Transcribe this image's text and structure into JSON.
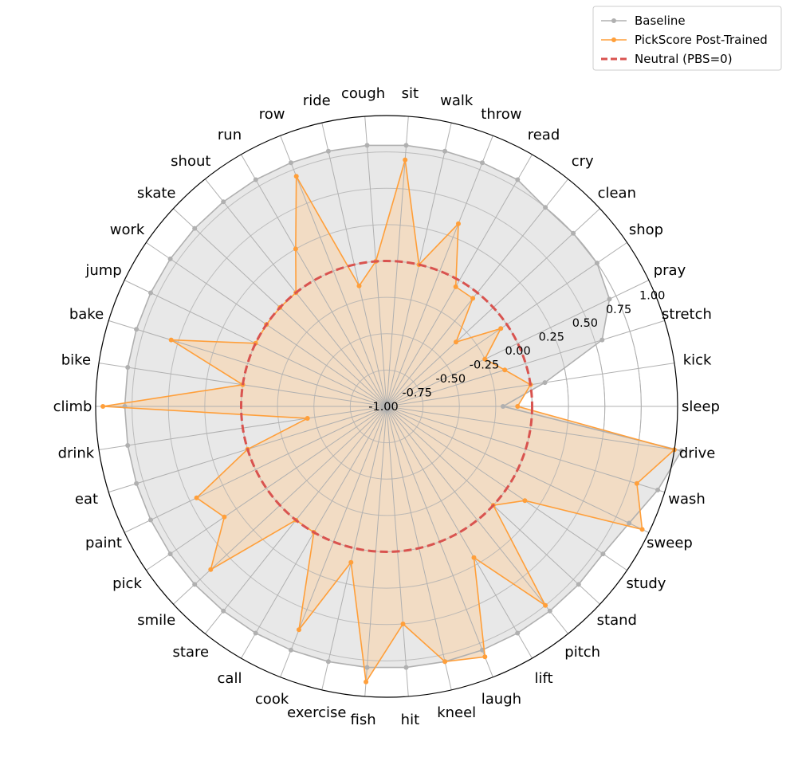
{
  "chart_data": {
    "type": "radar",
    "categories": [
      "sleep",
      "kick",
      "stretch",
      "pray",
      "shop",
      "clean",
      "cry",
      "read",
      "throw",
      "walk",
      "sit",
      "cough",
      "ride",
      "row",
      "run",
      "shout",
      "skate",
      "work",
      "jump",
      "bake",
      "bike",
      "climb",
      "drink",
      "eat",
      "paint",
      "pick",
      "smile",
      "stare",
      "call",
      "cook",
      "exercise",
      "fish",
      "hit",
      "kneel",
      "laugh",
      "lift",
      "pitch",
      "stand",
      "study",
      "sweep",
      "wash",
      "drive"
    ],
    "series": [
      {
        "name": "Baseline",
        "color": "#b0b0b0",
        "fill": "#e8e8e8",
        "values": [
          -0.2,
          0.1,
          0.55,
          0.7,
          0.75,
          0.75,
          0.75,
          0.8,
          0.8,
          0.8,
          0.8,
          0.8,
          0.8,
          0.8,
          0.8,
          0.8,
          0.8,
          0.8,
          0.8,
          0.8,
          0.8,
          0.8,
          0.8,
          0.8,
          0.8,
          0.8,
          0.8,
          0.8,
          0.8,
          0.8,
          0.8,
          0.8,
          0.8,
          0.8,
          0.8,
          0.8,
          0.8,
          0.8,
          0.8,
          0.85,
          0.95,
          1.05
        ]
      },
      {
        "name": "PickScore Post-Trained",
        "color": "#ff9f3a",
        "fill": "#f3d9bd",
        "values": [
          -0.1,
          0.0,
          -0.15,
          -0.25,
          -0.05,
          -0.35,
          -0.05,
          -0.05,
          0.35,
          0.0,
          0.7,
          0.0,
          -0.15,
          0.7,
          0.25,
          0.0,
          0.0,
          0.0,
          0.0,
          0.55,
          0.0,
          0.95,
          -0.45,
          0.0,
          0.45,
          0.35,
          0.65,
          0.0,
          0.0,
          0.65,
          0.1,
          0.9,
          0.5,
          0.8,
          0.85,
          0.2,
          0.75,
          0.0,
          0.15,
          0.95,
          0.8,
          1.0
        ]
      }
    ],
    "neutral": {
      "name": "Neutral (PBS=0)",
      "value": 0.0,
      "color": "#d9534f"
    },
    "radial_ticks": [
      "-1.00",
      "-0.75",
      "-0.50",
      "-0.25",
      "0.00",
      "0.25",
      "0.50",
      "0.75",
      "1.00"
    ],
    "rlim": [
      -1.0,
      1.0
    ],
    "grid": true,
    "legend_position": "top-right"
  }
}
